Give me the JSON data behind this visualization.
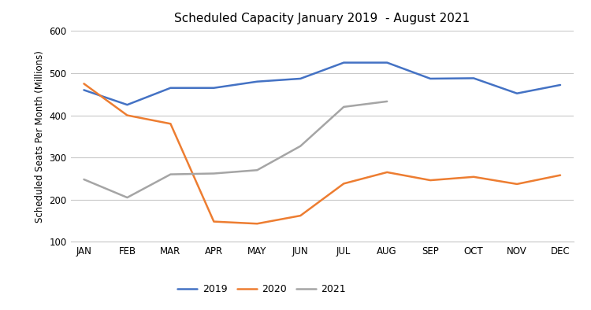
{
  "title": "Scheduled Capacity January 2019  - August 2021",
  "ylabel": "Scheduled Seats Per Month (Millions)",
  "months": [
    "JAN",
    "FEB",
    "MAR",
    "APR",
    "MAY",
    "JUN",
    "JUL",
    "AUG",
    "SEP",
    "OCT",
    "NOV",
    "DEC"
  ],
  "series_2019": [
    460,
    425,
    465,
    465,
    480,
    487,
    525,
    525,
    487,
    488,
    452,
    472
  ],
  "series_2020": [
    475,
    400,
    380,
    148,
    143,
    162,
    238,
    265,
    246,
    254,
    237,
    258
  ],
  "series_2021": [
    248,
    205,
    260,
    262,
    270,
    327,
    420,
    433,
    null,
    null,
    null,
    null
  ],
  "color_2019": "#4472C4",
  "color_2020": "#ED7D31",
  "color_2021": "#A5A5A5",
  "ylim_min": 100,
  "ylim_max": 600,
  "yticks": [
    100,
    200,
    300,
    400,
    500,
    600
  ],
  "legend_labels": [
    "2019",
    "2020",
    "2021"
  ],
  "title_fontsize": 11,
  "axis_label_fontsize": 8.5,
  "tick_fontsize": 8.5,
  "legend_fontsize": 9,
  "line_width": 1.8,
  "background_color": "#ffffff",
  "grid_color": "#c8c8c8"
}
